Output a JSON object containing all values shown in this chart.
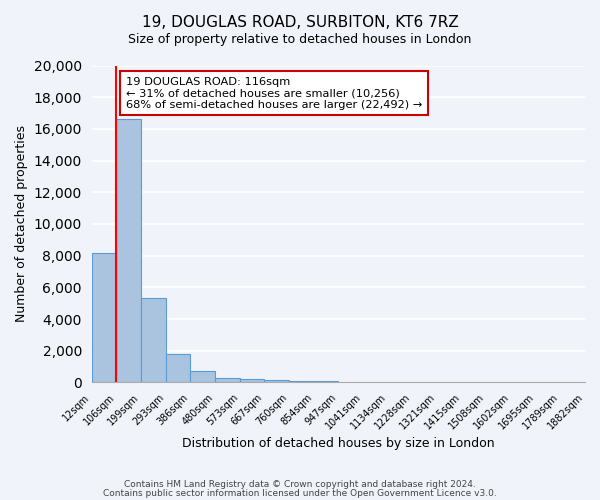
{
  "title1": "19, DOUGLAS ROAD, SURBITON, KT6 7RZ",
  "title2": "Size of property relative to detached houses in London",
  "xlabel": "Distribution of detached houses by size in London",
  "ylabel": "Number of detached properties",
  "bar_values": [
    8200,
    16600,
    5300,
    1800,
    750,
    300,
    200,
    150,
    100,
    80,
    0,
    0,
    0,
    0,
    0,
    0,
    0,
    0,
    0,
    0
  ],
  "bin_labels": [
    "12sqm",
    "106sqm",
    "199sqm",
    "293sqm",
    "386sqm",
    "480sqm",
    "573sqm",
    "667sqm",
    "760sqm",
    "854sqm",
    "947sqm",
    "1041sqm",
    "1134sqm",
    "1228sqm",
    "1321sqm",
    "1415sqm",
    "1508sqm",
    "1602sqm",
    "1695sqm",
    "1789sqm",
    "1882sqm"
  ],
  "bar_color": "#aac4e0",
  "bar_edge_color": "#5b9bd5",
  "red_line_x": 1,
  "annotation_title": "19 DOUGLAS ROAD: 116sqm",
  "annotation_line1": "← 31% of detached houses are smaller (10,256)",
  "annotation_line2": "68% of semi-detached houses are larger (22,492) →",
  "annotation_box_color": "#ffffff",
  "annotation_box_edge": "#cc0000",
  "ylim": [
    0,
    20000
  ],
  "yticks": [
    0,
    2000,
    4000,
    6000,
    8000,
    10000,
    12000,
    14000,
    16000,
    18000,
    20000
  ],
  "footer1": "Contains HM Land Registry data © Crown copyright and database right 2024.",
  "footer2": "Contains public sector information licensed under the Open Government Licence v3.0.",
  "bg_color": "#f0f4fa",
  "plot_bg_color": "#f0f4fa",
  "grid_color": "#ffffff"
}
